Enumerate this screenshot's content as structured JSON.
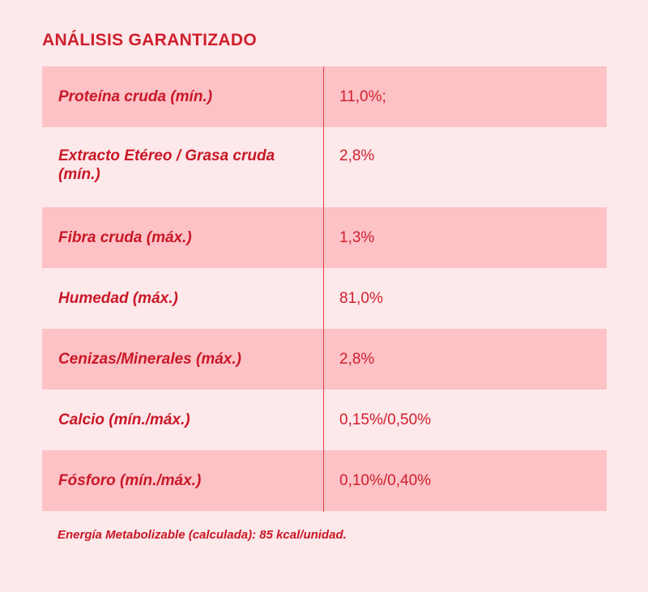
{
  "heading": "ANÁLISIS GARANTIZADO",
  "rows": [
    {
      "label": "Proteína cruda (mín.)",
      "value": "11,0%;"
    },
    {
      "label": "Extracto Etéreo / Grasa cruda (mín.)",
      "value": "2,8%"
    },
    {
      "label": "Fibra cruda (máx.)",
      "value": "1,3%"
    },
    {
      "label": "Humedad (máx.)",
      "value": "81,0%"
    },
    {
      "label": "Cenizas/Minerales (máx.)",
      "value": "2,8%"
    },
    {
      "label": "Calcio (mín./máx.)",
      "value": "0,15%/0,50%"
    },
    {
      "label": "Fósforo (mín./máx.)",
      "value": "0,10%/0,40%"
    }
  ],
  "footnote": "Energía Metabolizable (calculada): 85 kcal/unidad.",
  "colors": {
    "background": "#fde8ea",
    "shaded_row": "#fdc2c6",
    "text": "#d01f2e",
    "divider": "#e2404d"
  }
}
